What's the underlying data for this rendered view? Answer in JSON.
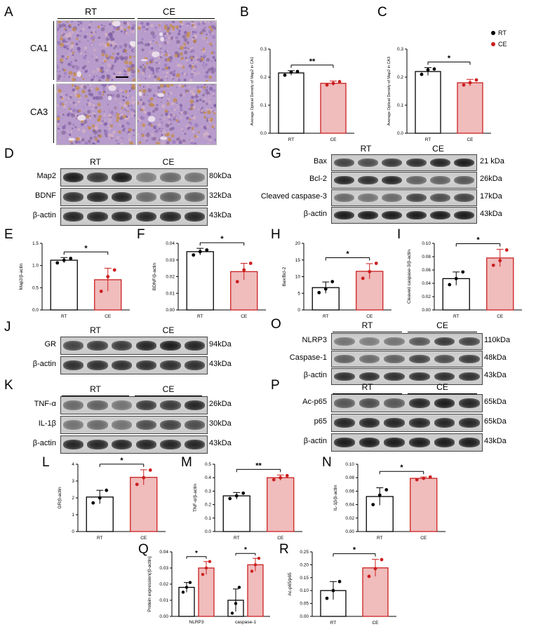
{
  "panel_letters": [
    "A",
    "B",
    "C",
    "D",
    "E",
    "F",
    "G",
    "H",
    "I",
    "J",
    "K",
    "L",
    "M",
    "N",
    "O",
    "P",
    "Q",
    "R"
  ],
  "groups": [
    "RT",
    "CE"
  ],
  "regions": [
    "CA1",
    "CA3"
  ],
  "legend": {
    "rt": "RT",
    "ce": "CE",
    "rt_color": "#000000",
    "ce_color": "#cc1f1f",
    "ce_fill": "#f0bcbc"
  },
  "blots": {
    "D": {
      "rows": [
        {
          "name": "Map2",
          "kda": "80kDa"
        },
        {
          "name": "BDNF",
          "kda": "32kDa"
        },
        {
          "name": "β-actin",
          "kda": "43kDa"
        }
      ]
    },
    "G": {
      "rows": [
        {
          "name": "Bax",
          "kda": "21 kDa"
        },
        {
          "name": "Bcl-2",
          "kda": "26kDa"
        },
        {
          "name": "Cleaved caspase-3",
          "kda": "17kDa"
        },
        {
          "name": "β-actin",
          "kda": "43kDa"
        }
      ]
    },
    "J": {
      "rows": [
        {
          "name": "GR",
          "kda": "94kDa"
        },
        {
          "name": "β-actin",
          "kda": "43kDa"
        }
      ]
    },
    "K": {
      "rows": [
        {
          "name": "TNF-α",
          "kda": "26kDa"
        },
        {
          "name": "IL-1β",
          "kda": "30kDa"
        },
        {
          "name": "β-actin",
          "kda": "43kDa"
        }
      ]
    },
    "O": {
      "rows": [
        {
          "name": "NLRP3",
          "kda": "110kDa"
        },
        {
          "name": "Caspase-1",
          "kda": "48kDa"
        },
        {
          "name": "β-actin",
          "kda": "43kDa"
        }
      ]
    },
    "P": {
      "rows": [
        {
          "name": "Ac-p65",
          "kda": "65kDa"
        },
        {
          "name": "p65",
          "kda": "65kDa"
        },
        {
          "name": "β-actin",
          "kda": "43kDa"
        }
      ]
    }
  },
  "chart_data": [
    {
      "id": "B",
      "type": "bar",
      "ylabel": "Average Optical Density of Map2 in CA1",
      "categories": [
        "RT",
        "CE"
      ],
      "values": [
        0.215,
        0.178
      ],
      "errors": [
        0.008,
        0.008
      ],
      "points": [
        [
          0.207,
          0.218,
          0.22
        ],
        [
          0.172,
          0.178,
          0.184
        ]
      ],
      "ylim": [
        0,
        0.3
      ],
      "yticks": [
        "0.0",
        "0.1",
        "0.2",
        "0.3"
      ],
      "significance": "**"
    },
    {
      "id": "C",
      "type": "bar",
      "ylabel": "Average Optical Density of Map2 in CA3",
      "categories": [
        "RT",
        "CE"
      ],
      "values": [
        0.22,
        0.18
      ],
      "errors": [
        0.014,
        0.012
      ],
      "points": [
        [
          0.21,
          0.226,
          0.229
        ],
        [
          0.172,
          0.18,
          0.19
        ]
      ],
      "ylim": [
        0,
        0.3
      ],
      "yticks": [
        "0.0",
        "0.1",
        "0.2",
        "0.3"
      ],
      "significance": "*"
    },
    {
      "id": "E",
      "type": "bar",
      "ylabel": "Map2/β-actin",
      "categories": [
        "RT",
        "CE"
      ],
      "values": [
        1.12,
        0.68
      ],
      "errors": [
        0.06,
        0.26
      ],
      "points": [
        [
          1.06,
          1.12,
          1.16
        ],
        [
          0.42,
          0.75,
          0.9
        ]
      ],
      "ylim": [
        0,
        1.5
      ],
      "yticks": [
        "0.0",
        "0.5",
        "1.0",
        "1.5"
      ],
      "significance": "*"
    },
    {
      "id": "F",
      "type": "bar",
      "ylabel": "BDNF/β-actin",
      "categories": [
        "RT",
        "CE"
      ],
      "values": [
        0.035,
        0.023
      ],
      "errors": [
        0.002,
        0.005
      ],
      "points": [
        [
          0.033,
          0.035,
          0.036
        ],
        [
          0.017,
          0.024,
          0.028
        ]
      ],
      "ylim": [
        0,
        0.04
      ],
      "yticks": [
        "0.00",
        "0.01",
        "0.02",
        "0.03",
        "0.04"
      ],
      "significance": "*"
    },
    {
      "id": "H",
      "type": "bar",
      "ylabel": "Bax/Bcl-2",
      "categories": [
        "RT",
        "CE"
      ],
      "values": [
        6.7,
        11.6
      ],
      "errors": [
        1.7,
        2.3
      ],
      "points": [
        [
          5.2,
          6.3,
          8.5
        ],
        [
          9.5,
          11.5,
          14
        ]
      ],
      "ylim": [
        0,
        20
      ],
      "yticks": [
        "0",
        "5",
        "10",
        "15",
        "20"
      ],
      "significance": "*"
    },
    {
      "id": "I",
      "type": "bar",
      "ylabel": "Cleaved caspase-3/β-actin",
      "categories": [
        "RT",
        "CE"
      ],
      "values": [
        0.047,
        0.078
      ],
      "errors": [
        0.01,
        0.013
      ],
      "points": [
        [
          0.038,
          0.047,
          0.057
        ],
        [
          0.067,
          0.074,
          0.09
        ]
      ],
      "ylim": [
        0,
        0.1
      ],
      "yticks": [
        "0.00",
        "0.02",
        "0.04",
        "0.06",
        "0.08",
        "0.10"
      ],
      "significance": "*"
    },
    {
      "id": "L",
      "type": "bar",
      "ylabel": "GR/β-actin",
      "categories": [
        "RT",
        "CE"
      ],
      "values": [
        2.05,
        3.22
      ],
      "errors": [
        0.4,
        0.45
      ],
      "points": [
        [
          1.7,
          2.0,
          2.45
        ],
        [
          2.8,
          3.2,
          3.65
        ]
      ],
      "ylim": [
        0,
        4
      ],
      "yticks": [
        "0",
        "1",
        "2",
        "3",
        "4"
      ],
      "significance": "*"
    },
    {
      "id": "M",
      "type": "bar",
      "ylabel": "TNF-α/β-actin",
      "categories": [
        "RT",
        "CE"
      ],
      "values": [
        0.265,
        0.4
      ],
      "errors": [
        0.025,
        0.02
      ],
      "points": [
        [
          0.245,
          0.265,
          0.285
        ],
        [
          0.385,
          0.4,
          0.415
        ]
      ],
      "ylim": [
        0,
        0.5
      ],
      "yticks": [
        "0.0",
        "0.1",
        "0.2",
        "0.3",
        "0.4",
        "0.5"
      ],
      "significance": "**"
    },
    {
      "id": "N",
      "type": "bar",
      "ylabel": "IL-1β/β-actin",
      "categories": [
        "RT",
        "CE"
      ],
      "values": [
        0.052,
        0.079
      ],
      "errors": [
        0.013,
        0.002
      ],
      "points": [
        [
          0.04,
          0.054,
          0.062
        ],
        [
          0.077,
          0.079,
          0.081
        ]
      ],
      "ylim": [
        0,
        0.1
      ],
      "yticks": [
        "0.00",
        "0.02",
        "0.04",
        "0.06",
        "0.08",
        "0.10"
      ],
      "significance": "*"
    },
    {
      "id": "Q",
      "type": "bar",
      "ylabel": "Protein expression(/β-actin)",
      "categories": [
        "NLRP3",
        "caspase-1"
      ],
      "series": [
        {
          "values": [
            0.018,
            0.01
          ],
          "errors": [
            0.003,
            0.007
          ],
          "points": [
            [
              0.015,
              0.018,
              0.021
            ],
            [
              0.002,
              0.008,
              0.018
            ]
          ]
        },
        {
          "values": [
            0.03,
            0.032
          ],
          "errors": [
            0.004,
            0.004
          ],
          "points": [
            [
              0.026,
              0.03,
              0.034
            ],
            [
              0.028,
              0.032,
              0.036
            ]
          ]
        }
      ],
      "ylim": [
        0,
        0.04
      ],
      "yticks": [
        "0.00",
        "0.01",
        "0.02",
        "0.03",
        "0.04"
      ],
      "significance": [
        "*",
        "*"
      ]
    },
    {
      "id": "R",
      "type": "bar",
      "ylabel": "Ac-p65/p65",
      "categories": [
        "RT",
        "CE"
      ],
      "values": [
        0.1,
        0.188
      ],
      "errors": [
        0.035,
        0.033
      ],
      "points": [
        [
          0.07,
          0.1,
          0.135
        ],
        [
          0.155,
          0.185,
          0.22
        ]
      ],
      "ylim": [
        0,
        0.25
      ],
      "yticks": [
        "0.00",
        "0.05",
        "0.10",
        "0.15",
        "0.20",
        "0.25"
      ],
      "significance": "*"
    }
  ]
}
